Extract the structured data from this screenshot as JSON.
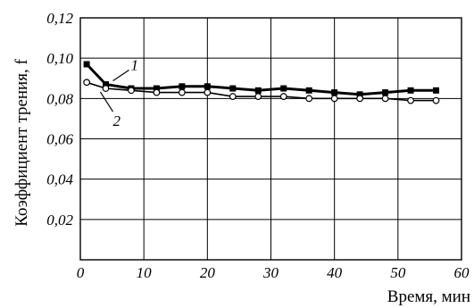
{
  "chart_data": {
    "type": "line",
    "xlabel": "Время, мин",
    "ylabel": "Коэффициент трения, f",
    "xlim": [
      0,
      60
    ],
    "ylim": [
      0,
      0.12
    ],
    "x_ticks": [
      "0",
      "10",
      "20",
      "30",
      "40",
      "50",
      "60"
    ],
    "y_ticks": [
      "0,02",
      "0,04",
      "0,06",
      "0,08",
      "0,10",
      "0,12"
    ],
    "grid": true,
    "series": [
      {
        "name": "1",
        "marker": "filled-square",
        "x": [
          1,
          4,
          8,
          12,
          16,
          20,
          24,
          28,
          32,
          36,
          40,
          44,
          48,
          52,
          56
        ],
        "y": [
          0.097,
          0.087,
          0.085,
          0.085,
          0.086,
          0.086,
          0.085,
          0.084,
          0.085,
          0.084,
          0.083,
          0.082,
          0.083,
          0.084,
          0.084
        ]
      },
      {
        "name": "2",
        "marker": "open-circle",
        "x": [
          1,
          4,
          8,
          12,
          16,
          20,
          24,
          28,
          32,
          36,
          40,
          44,
          48,
          52,
          56
        ],
        "y": [
          0.088,
          0.085,
          0.084,
          0.083,
          0.083,
          0.083,
          0.081,
          0.081,
          0.081,
          0.08,
          0.08,
          0.08,
          0.08,
          0.079,
          0.079
        ]
      }
    ]
  }
}
